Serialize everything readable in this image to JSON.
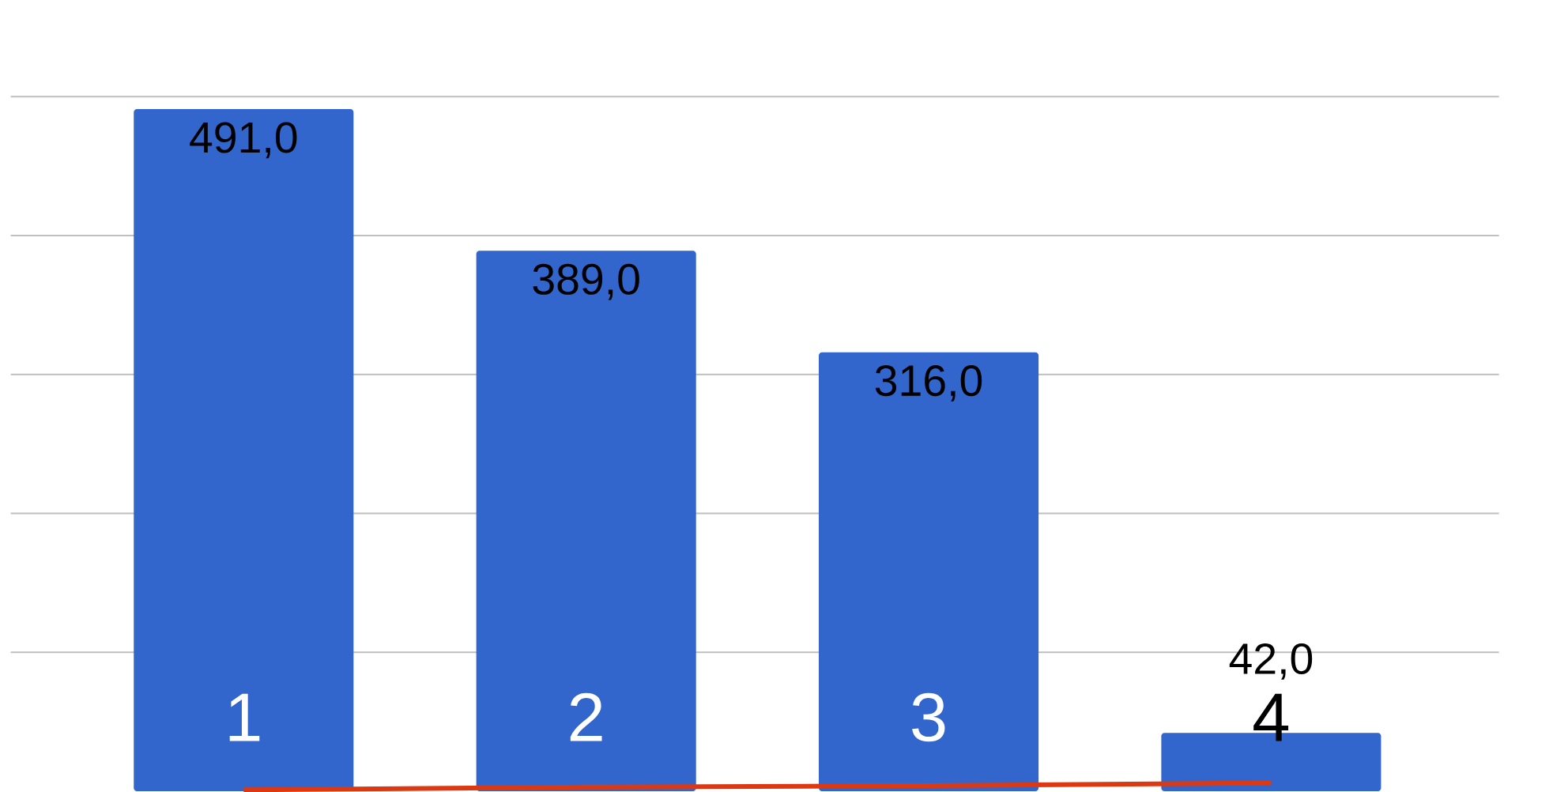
{
  "chart_data": {
    "type": "bar",
    "categories": [
      "1",
      "2",
      "3",
      "4"
    ],
    "series": [
      {
        "color": "#3366cc",
        "values": [
          491,
          389,
          316,
          42
        ],
        "value_labels": [
          "491,0",
          "389,0",
          "316,0",
          "42,0"
        ]
      },
      {
        "type": "line",
        "color": "#dc3912",
        "values": [
          1,
          3,
          4,
          6
        ]
      }
    ],
    "yticks": [
      {
        "value": 100,
        "label": null
      },
      {
        "value": 200,
        "label": null
      },
      {
        "value": 300,
        "label": null
      },
      {
        "value": 400,
        "label": null
      },
      {
        "value": 500,
        "label": null
      }
    ],
    "grid": "y",
    "tick_labels": "x"
  }
}
